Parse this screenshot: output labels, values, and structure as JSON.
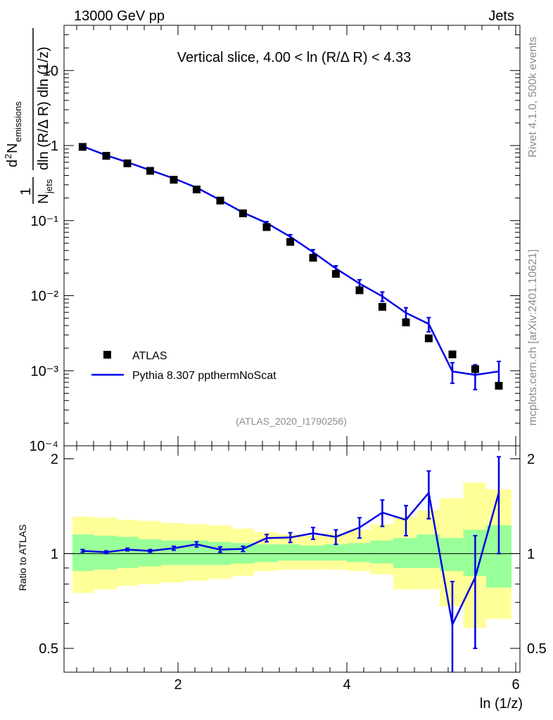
{
  "header": {
    "left": "13000 GeV pp",
    "right": "Jets"
  },
  "side_labels": {
    "rivet": "Rivet 4.1.0,  500k events",
    "mcplots": "mcplots.cern.ch [arXiv:2401.10621]"
  },
  "colors": {
    "mc": "#0000e6",
    "band_inner": "#99ff99",
    "band_outer": "#ffff99",
    "data": "#000000"
  },
  "chart_data": [
    {
      "type": "scatter",
      "title": "Vertical slice, 4.00 < ln (R/Δ R) < 4.33",
      "watermark": "(ATLAS_2020_I1790256)",
      "ylabel_parts": {
        "pre": "1",
        "den": "N",
        "den_sub": "jets",
        "num_sup": "2",
        "num": "d",
        "num_n": "N",
        "num_sub": "emissions",
        "den2": "dln (R/Δ R) dln (1/z)"
      },
      "xlim": [
        0.65,
        6.05
      ],
      "ylim": [
        0.0001,
        40
      ],
      "yscale": "log",
      "yticks": [
        {
          "value": 10,
          "label": "10"
        },
        {
          "value": 1,
          "label": "1"
        },
        {
          "value": 0.1,
          "label": "10⁻¹"
        },
        {
          "value": 0.01,
          "label": "10⁻²"
        },
        {
          "value": 0.001,
          "label": "10⁻³"
        },
        {
          "value": 0.0001,
          "label": "10⁻⁴"
        }
      ],
      "series": [
        {
          "name": "ATLAS",
          "kind": "markers",
          "x": [
            0.87,
            1.15,
            1.4,
            1.67,
            1.95,
            2.22,
            2.5,
            2.77,
            3.05,
            3.33,
            3.6,
            3.87,
            4.15,
            4.42,
            4.7,
            4.97,
            5.25,
            5.52,
            5.8
          ],
          "y": [
            0.96,
            0.73,
            0.58,
            0.46,
            0.35,
            0.26,
            0.185,
            0.125,
            0.082,
            0.052,
            0.032,
            0.0195,
            0.0118,
            0.0071,
            0.0044,
            0.0027,
            0.00165,
            0.00105,
            0.00063
          ]
        },
        {
          "name": "Pythia 8.307 ppthermNoScat",
          "kind": "line",
          "x": [
            0.87,
            1.15,
            1.4,
            1.67,
            1.95,
            2.22,
            2.5,
            2.77,
            3.05,
            3.33,
            3.6,
            3.87,
            4.15,
            4.42,
            4.7,
            4.97,
            5.25,
            5.52,
            5.8
          ],
          "y": [
            0.98,
            0.74,
            0.6,
            0.47,
            0.365,
            0.275,
            0.188,
            0.128,
            0.093,
            0.061,
            0.038,
            0.023,
            0.0145,
            0.0098,
            0.0059,
            0.0042,
            0.00098,
            0.00088,
            0.00098
          ],
          "yerr": [
            0.01,
            0.01,
            0.01,
            0.01,
            0.005,
            0.005,
            0.004,
            0.003,
            0.004,
            0.004,
            0.003,
            0.002,
            0.0018,
            0.0014,
            0.001,
            0.0009,
            0.0003,
            0.00032,
            0.00035
          ]
        }
      ]
    },
    {
      "type": "line",
      "ylabel": "Ratio to ATLAS",
      "xlabel": "ln (1/z)",
      "xlim": [
        0.65,
        6.05
      ],
      "ylim": [
        0.42,
        2.2
      ],
      "yscale": "log",
      "yticks": [
        {
          "value": 2,
          "label": "2"
        },
        {
          "value": 1,
          "label": "1"
        },
        {
          "value": 0.5,
          "label": "0.5"
        }
      ],
      "xticks": [
        {
          "value": 2,
          "label": "2"
        },
        {
          "value": 4,
          "label": "4"
        },
        {
          "value": 6,
          "label": "6"
        }
      ],
      "bands": {
        "edges": [
          0.75,
          1.0,
          1.28,
          1.53,
          1.8,
          2.08,
          2.35,
          2.63,
          2.9,
          3.18,
          3.45,
          3.73,
          4.0,
          4.28,
          4.55,
          4.83,
          5.1,
          5.38,
          5.65,
          5.95
        ],
        "inner_lo": [
          0.88,
          0.89,
          0.9,
          0.91,
          0.92,
          0.92,
          0.92,
          0.93,
          0.94,
          0.95,
          0.95,
          0.95,
          0.94,
          0.93,
          0.9,
          0.9,
          0.88,
          0.85,
          0.78
        ],
        "inner_hi": [
          1.15,
          1.14,
          1.13,
          1.11,
          1.1,
          1.1,
          1.09,
          1.08,
          1.07,
          1.07,
          1.06,
          1.07,
          1.08,
          1.1,
          1.12,
          1.15,
          1.12,
          1.19,
          1.23
        ],
        "outer_lo": [
          0.75,
          0.77,
          0.79,
          0.8,
          0.81,
          0.82,
          0.83,
          0.85,
          0.88,
          0.89,
          0.89,
          0.89,
          0.88,
          0.86,
          0.77,
          0.77,
          0.68,
          0.58,
          0.62
        ],
        "outer_hi": [
          1.31,
          1.3,
          1.28,
          1.27,
          1.25,
          1.24,
          1.23,
          1.2,
          1.17,
          1.15,
          1.14,
          1.16,
          1.19,
          1.24,
          1.31,
          1.37,
          1.5,
          1.68,
          1.6
        ]
      },
      "series": [
        {
          "name": "Pythia 8.307 ppthermNoScat / ATLAS",
          "x": [
            0.87,
            1.15,
            1.4,
            1.67,
            1.95,
            2.22,
            2.5,
            2.77,
            3.05,
            3.33,
            3.6,
            3.87,
            4.15,
            4.42,
            4.7,
            4.97,
            5.25,
            5.52,
            5.8
          ],
          "y": [
            1.02,
            1.01,
            1.03,
            1.02,
            1.04,
            1.07,
            1.03,
            1.035,
            1.12,
            1.125,
            1.16,
            1.13,
            1.21,
            1.35,
            1.28,
            1.56,
            0.595,
            0.84,
            1.56
          ],
          "yerr_lo": [
            0.01,
            0.01,
            0.01,
            0.01,
            0.015,
            0.02,
            0.02,
            0.02,
            0.03,
            0.04,
            0.05,
            0.06,
            0.09,
            0.13,
            0.14,
            0.27,
            0.2,
            0.34,
            0.56
          ],
          "yerr_hi": [
            0.01,
            0.01,
            0.01,
            0.01,
            0.015,
            0.02,
            0.02,
            0.02,
            0.03,
            0.04,
            0.05,
            0.06,
            0.09,
            0.13,
            0.14,
            0.27,
            0.22,
            0.3,
            0.47
          ]
        }
      ]
    }
  ]
}
